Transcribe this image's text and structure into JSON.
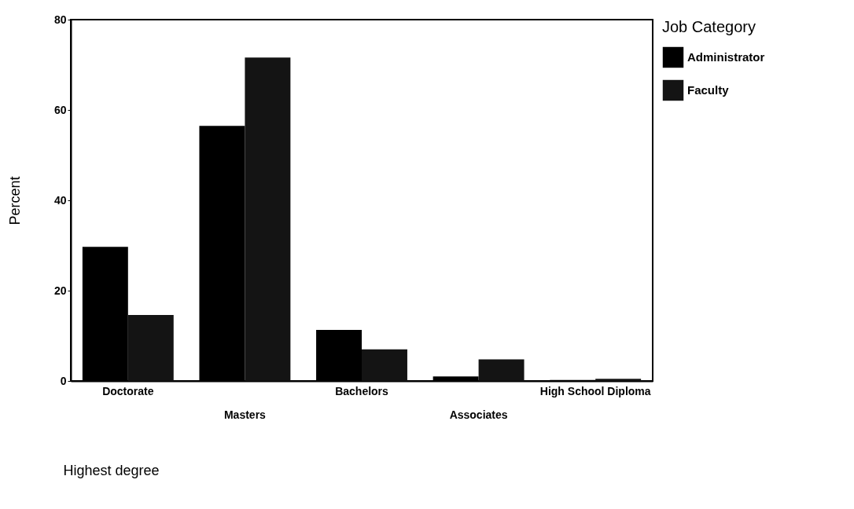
{
  "chart_data": {
    "type": "bar",
    "xlabel": "Highest degree",
    "ylabel": "Percent",
    "legend_title": "Job Category",
    "categories": [
      "Doctorate",
      "Masters",
      "Bachelors",
      "Associates",
      "High School Diploma"
    ],
    "series": [
      {
        "name": "Administrator",
        "color": "#000000",
        "values": [
          29.7,
          56.5,
          11.3,
          1,
          0.2
        ]
      },
      {
        "name": "Faculty",
        "color": "#141414",
        "values": [
          14.6,
          71.6,
          7,
          4.8,
          0.5
        ]
      }
    ],
    "ylim": [
      0,
      80
    ],
    "yticks": [
      0,
      20,
      40,
      60,
      80
    ],
    "grid": false,
    "legend": "right"
  }
}
